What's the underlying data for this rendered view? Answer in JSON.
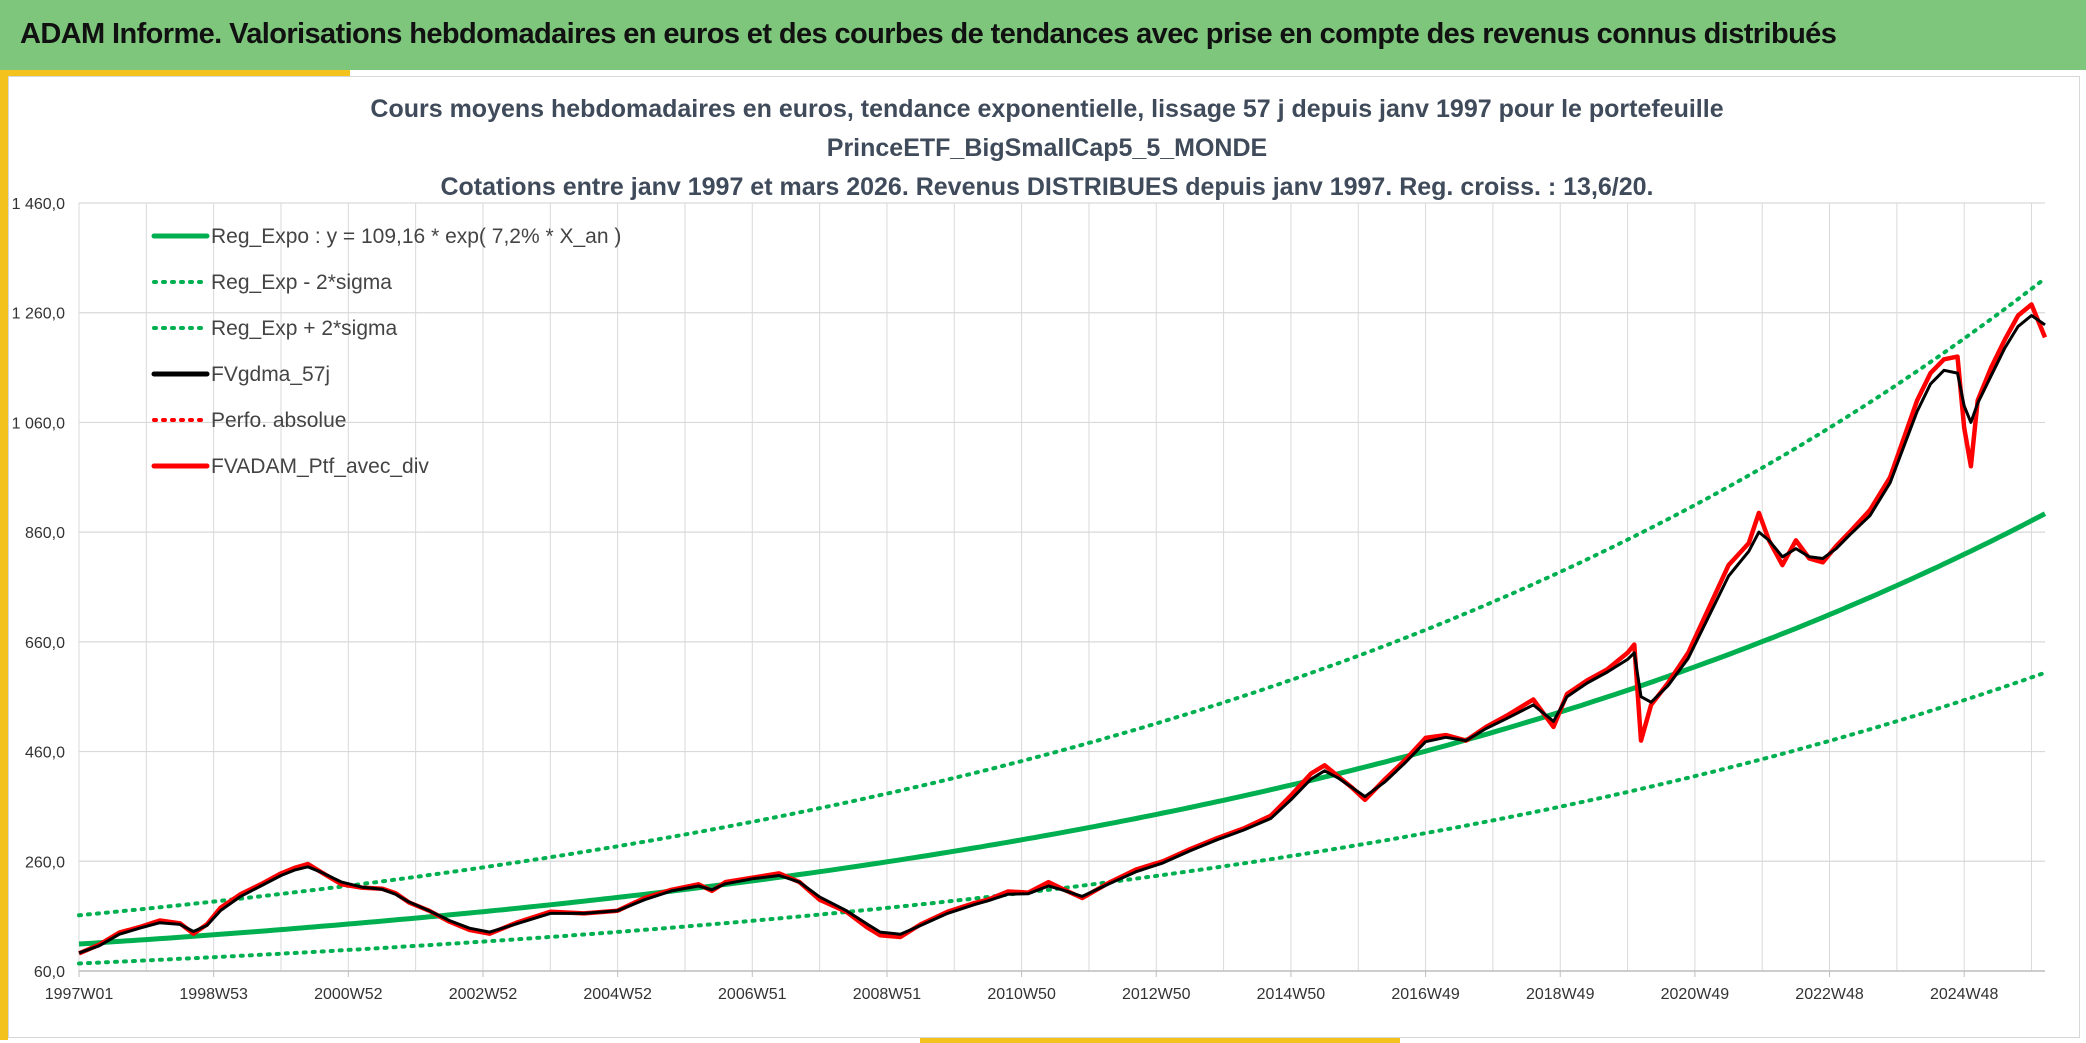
{
  "header": {
    "title": "ADAM Informe. Valorisations hebdomadaires en euros et des courbes de tendances avec prise en compte des revenus connus distribués"
  },
  "colors": {
    "banner": "#7dc67b",
    "accent_gold": "#f4c21c",
    "trend_green": "#00b050",
    "smoothed_black": "#000000",
    "portfolio_red": "#ff0000",
    "grid": "#d9d9d9"
  },
  "chart_data": {
    "type": "line",
    "title_lines": [
      "Cours moyens hebdomadaires en euros, tendance exponentielle, lissage 57 j depuis janv 1997 pour le portefeuille",
      "PrinceETF_BigSmallCap5_5_MONDE",
      "Cotations entre janv 1997 et mars 2026. Revenus DISTRIBUES depuis janv 1997. Reg. croiss. : 13,6/20."
    ],
    "xlabel": "",
    "ylabel": "",
    "ylim": [
      60,
      1480
    ],
    "xlim": [
      1997.0,
      2026.2
    ],
    "yticks": [
      60,
      260,
      460,
      660,
      860,
      1060,
      1260,
      1460
    ],
    "ytick_labels": [
      "60,0",
      "260,0",
      "460,0",
      "660,0",
      "860,0",
      "1 060,0",
      "1 260,0",
      "1 460,0"
    ],
    "xticks": [
      1997.0,
      1999.0,
      2001.0,
      2003.0,
      2005.0,
      2007.0,
      2009.0,
      2011.0,
      2013.0,
      2015.0,
      2017.0,
      2019.0,
      2021.0,
      2023.0,
      2025.0
    ],
    "xtick_labels": [
      "1997W01",
      "1998W53",
      "2000W52",
      "2002W52",
      "2004W52",
      "2006W51",
      "2008W51",
      "2010W50",
      "2012W50",
      "2014W50",
      "2016W49",
      "2018W49",
      "2020W49",
      "2022W48",
      "2024W48"
    ],
    "grid": true,
    "legend_position": "top-left",
    "legend": [
      {
        "label": "Reg_Expo : y = 109,16 * exp( 7,2% *  X_an )",
        "color": "#00b050",
        "style": "solid"
      },
      {
        "label": "Reg_Exp - 2*sigma",
        "color": "#00b050",
        "style": "dotted"
      },
      {
        "label": "Reg_Exp + 2*sigma",
        "color": "#00b050",
        "style": "dotted"
      },
      {
        "label": "FVgdma_57j",
        "color": "#000000",
        "style": "solid"
      },
      {
        "label": "Perfo. absolue",
        "color": "#ff0000",
        "style": "dotted"
      },
      {
        "label": "FVADAM_Ptf_avec_div",
        "color": "#ff0000",
        "style": "solid"
      }
    ],
    "regression": {
      "a": 109.16,
      "rate": 0.072,
      "sigma_factor": 1.48
    },
    "series": [
      {
        "name": "FVADAM_Ptf_avec_div",
        "x": [
          1997.0,
          1997.3,
          1997.6,
          1997.9,
          1998.2,
          1998.5,
          1998.7,
          1998.9,
          1999.1,
          1999.4,
          1999.7,
          2000.0,
          2000.2,
          2000.4,
          2000.6,
          2000.9,
          2001.2,
          2001.5,
          2001.7,
          2001.9,
          2002.2,
          2002.5,
          2002.8,
          2003.1,
          2003.5,
          2004.0,
          2004.5,
          2005.0,
          2005.4,
          2005.8,
          2006.2,
          2006.4,
          2006.6,
          2007.0,
          2007.4,
          2007.7,
          2008.0,
          2008.4,
          2008.7,
          2008.9,
          2009.2,
          2009.5,
          2009.9,
          2010.3,
          2010.5,
          2010.8,
          2011.1,
          2011.4,
          2011.6,
          2011.9,
          2012.3,
          2012.7,
          2013.1,
          2013.5,
          2013.9,
          2014.3,
          2014.7,
          2015.0,
          2015.3,
          2015.5,
          2015.7,
          2015.9,
          2016.1,
          2016.4,
          2016.7,
          2017.0,
          2017.3,
          2017.6,
          2017.9,
          2018.2,
          2018.6,
          2018.9,
          2019.1,
          2019.4,
          2019.7,
          2020.0,
          2020.1,
          2020.2,
          2020.35,
          2020.6,
          2020.9,
          2021.2,
          2021.5,
          2021.8,
          2021.95,
          2022.1,
          2022.3,
          2022.5,
          2022.7,
          2022.9,
          2023.1,
          2023.3,
          2023.6,
          2023.9,
          2024.1,
          2024.3,
          2024.5,
          2024.7,
          2024.9,
          2025.0,
          2025.1,
          2025.2,
          2025.4,
          2025.6,
          2025.8,
          2026.0,
          2026.2
        ],
        "y": [
          92,
          108,
          130,
          140,
          152,
          147,
          128,
          145,
          175,
          200,
          218,
          238,
          248,
          255,
          240,
          218,
          212,
          210,
          202,
          185,
          170,
          150,
          135,
          128,
          148,
          168,
          165,
          170,
          193,
          208,
          218,
          206,
          222,
          230,
          238,
          222,
          190,
          168,
          140,
          125,
          122,
          145,
          168,
          184,
          190,
          205,
          203,
          222,
          210,
          193,
          221,
          245,
          260,
          282,
          302,
          320,
          343,
          380,
          420,
          435,
          415,
          395,
          372,
          410,
          445,
          485,
          490,
          480,
          505,
          525,
          555,
          505,
          565,
          590,
          610,
          640,
          655,
          480,
          545,
          585,
          640,
          720,
          800,
          840,
          895,
          845,
          800,
          845,
          812,
          805,
          835,
          860,
          900,
          960,
          1030,
          1100,
          1150,
          1175,
          1180,
          1050,
          980,
          1100,
          1160,
          1210,
          1255,
          1275,
          1215
        ]
      },
      {
        "name": "FVgdma_57j",
        "x": [
          1997.0,
          1997.3,
          1997.6,
          1997.9,
          1998.2,
          1998.5,
          1998.7,
          1998.9,
          1999.1,
          1999.4,
          1999.7,
          2000.0,
          2000.2,
          2000.4,
          2000.6,
          2000.9,
          2001.2,
          2001.5,
          2001.7,
          2001.9,
          2002.2,
          2002.5,
          2002.8,
          2003.1,
          2003.5,
          2004.0,
          2004.5,
          2005.0,
          2005.4,
          2005.8,
          2006.2,
          2006.4,
          2006.6,
          2007.0,
          2007.4,
          2007.7,
          2008.0,
          2008.4,
          2008.7,
          2008.9,
          2009.2,
          2009.5,
          2009.9,
          2010.3,
          2010.5,
          2010.8,
          2011.1,
          2011.4,
          2011.6,
          2011.9,
          2012.3,
          2012.7,
          2013.1,
          2013.5,
          2013.9,
          2014.3,
          2014.7,
          2015.0,
          2015.3,
          2015.5,
          2015.7,
          2015.9,
          2016.1,
          2016.4,
          2016.7,
          2017.0,
          2017.3,
          2017.6,
          2017.9,
          2018.2,
          2018.6,
          2018.9,
          2019.1,
          2019.4,
          2019.7,
          2020.0,
          2020.1,
          2020.2,
          2020.35,
          2020.6,
          2020.9,
          2021.2,
          2021.5,
          2021.8,
          2021.95,
          2022.1,
          2022.3,
          2022.5,
          2022.7,
          2022.9,
          2023.1,
          2023.3,
          2023.6,
          2023.9,
          2024.1,
          2024.3,
          2024.5,
          2024.7,
          2024.9,
          2025.0,
          2025.1,
          2025.2,
          2025.4,
          2025.6,
          2025.8,
          2026.0,
          2026.2
        ],
        "y": [
          93,
          106,
          127,
          138,
          148,
          145,
          132,
          143,
          170,
          196,
          215,
          234,
          244,
          250,
          240,
          222,
          213,
          209,
          200,
          186,
          170,
          152,
          138,
          131,
          146,
          165,
          165,
          170,
          190,
          206,
          215,
          208,
          219,
          228,
          234,
          222,
          195,
          170,
          146,
          131,
          127,
          143,
          165,
          181,
          188,
          200,
          201,
          215,
          208,
          196,
          219,
          241,
          257,
          279,
          299,
          317,
          338,
          372,
          410,
          425,
          412,
          395,
          378,
          405,
          440,
          478,
          486,
          480,
          502,
          520,
          545,
          515,
          560,
          585,
          605,
          628,
          640,
          560,
          550,
          580,
          630,
          705,
          780,
          825,
          860,
          845,
          815,
          830,
          815,
          812,
          830,
          855,
          890,
          950,
          1015,
          1080,
          1130,
          1155,
          1150,
          1090,
          1060,
          1095,
          1145,
          1195,
          1235,
          1255,
          1238
        ]
      }
    ]
  }
}
